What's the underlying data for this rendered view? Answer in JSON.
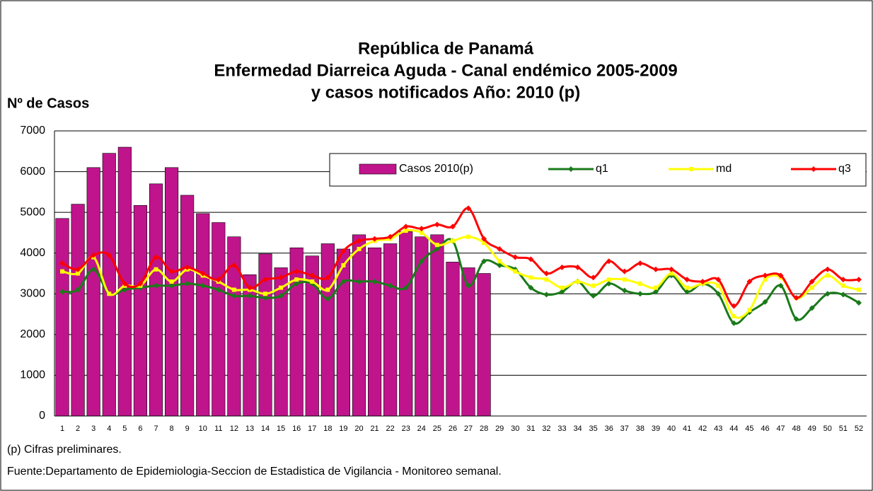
{
  "chart_data": {
    "type": "bar-line",
    "title": [
      "República de Panamá",
      "Enfermedad Diarreica Aguda - Canal endémico 2005-2009",
      "y casos notificados Año: 2010 (p)"
    ],
    "ylabel": "Nº de Casos",
    "notes": [
      "(p) Cifras preliminares.",
      "Fuente:Departamento de Epidemiologia-Seccion de Estadistica de Vigilancia - Monitoreo semanal."
    ],
    "categories": [
      "1",
      "2",
      "3",
      "4",
      "5",
      "6",
      "7",
      "8",
      "9",
      "10",
      "11",
      "12",
      "13",
      "14",
      "15",
      "16",
      "17",
      "18",
      "19",
      "20",
      "21",
      "22",
      "23",
      "24",
      "25",
      "26",
      "27",
      "28",
      "29",
      "30",
      "31",
      "32",
      "33",
      "34",
      "35",
      "36",
      "37",
      "38",
      "39",
      "40",
      "41",
      "42",
      "43",
      "44",
      "45",
      "46",
      "47",
      "48",
      "49",
      "50",
      "51",
      "52"
    ],
    "series": [
      {
        "name": "Casos 2010(p)",
        "kind": "bar",
        "color": "#c0148c",
        "values": [
          4850,
          5200,
          6100,
          6450,
          6600,
          5170,
          5700,
          6100,
          5420,
          4970,
          4750,
          4400,
          3470,
          3980,
          3640,
          4130,
          3930,
          4230,
          4100,
          4450,
          4130,
          4230,
          4530,
          4400,
          4450,
          3780,
          3640,
          3500,
          null,
          null,
          null,
          null,
          null,
          null,
          null,
          null,
          null,
          null,
          null,
          null,
          null,
          null,
          null,
          null,
          null,
          null,
          null,
          null,
          null,
          null,
          null,
          null
        ]
      },
      {
        "name": "q1",
        "kind": "line",
        "marker": "diamond",
        "color": "#1a7a1a",
        "values": [
          3050,
          3100,
          3600,
          3000,
          3100,
          3150,
          3200,
          3200,
          3250,
          3200,
          3100,
          2950,
          2950,
          2900,
          2950,
          3250,
          3250,
          2880,
          3300,
          3300,
          3300,
          3200,
          3150,
          3800,
          4100,
          4300,
          3200,
          3800,
          3700,
          3600,
          3150,
          2980,
          3050,
          3300,
          2950,
          3250,
          3080,
          3000,
          3050,
          3450,
          3050,
          3250,
          3000,
          2280,
          2550,
          2800,
          3200,
          2380,
          2650,
          3000,
          2980,
          2780
        ]
      },
      {
        "name": "md",
        "kind": "line",
        "marker": "square",
        "color": "#ffff00",
        "values": [
          3550,
          3500,
          3900,
          3000,
          3200,
          3200,
          3600,
          3300,
          3600,
          3450,
          3300,
          3100,
          3100,
          3000,
          3150,
          3350,
          3300,
          3100,
          3700,
          4100,
          4300,
          4350,
          4550,
          4500,
          4200,
          4300,
          4400,
          4250,
          3800,
          3550,
          3400,
          3350,
          3150,
          3300,
          3200,
          3350,
          3350,
          3250,
          3150,
          3500,
          3150,
          3250,
          3200,
          2450,
          2600,
          3350,
          3400,
          2900,
          3150,
          3450,
          3200,
          3100
        ]
      },
      {
        "name": "q3",
        "kind": "line",
        "marker": "diamond",
        "color": "#ff0000",
        "values": [
          3750,
          3600,
          3950,
          3950,
          3250,
          3250,
          3900,
          3550,
          3650,
          3500,
          3350,
          3700,
          3150,
          3350,
          3400,
          3550,
          3450,
          3400,
          4050,
          4300,
          4350,
          4400,
          4650,
          4600,
          4700,
          4650,
          5100,
          4350,
          4100,
          3900,
          3850,
          3500,
          3650,
          3650,
          3400,
          3800,
          3550,
          3750,
          3600,
          3600,
          3350,
          3300,
          3350,
          2700,
          3300,
          3450,
          3450,
          2900,
          3300,
          3600,
          3350,
          3350
        ]
      }
    ],
    "ylim": [
      0,
      7000
    ],
    "yticks": [
      0,
      1000,
      2000,
      3000,
      4000,
      5000,
      6000,
      7000
    ],
    "grid": true
  }
}
